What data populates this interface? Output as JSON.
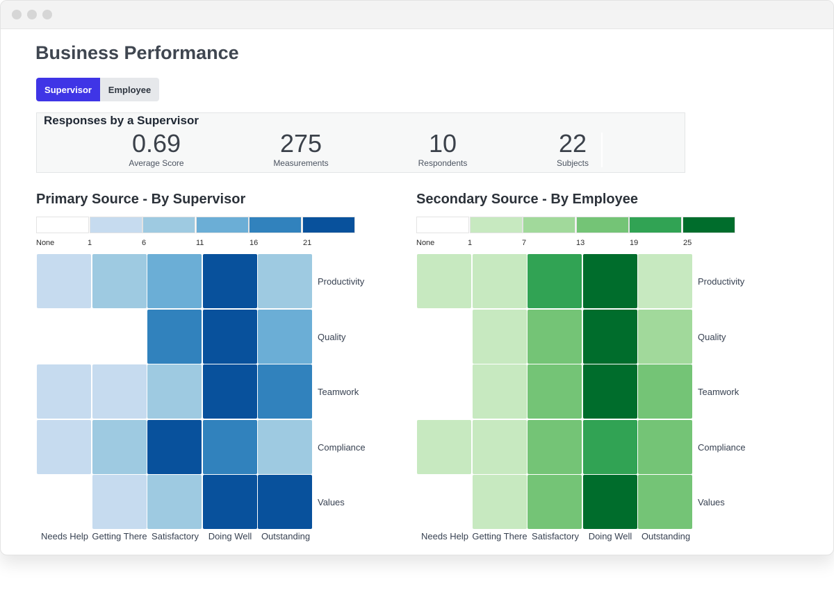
{
  "page": {
    "title": "Business Performance"
  },
  "tabs": [
    {
      "label": "Supervisor",
      "active": true
    },
    {
      "label": "Employee",
      "active": false
    }
  ],
  "stats": {
    "title": "Responses by a Supervisor",
    "items": [
      {
        "value": "0.69",
        "label": "Average Score"
      },
      {
        "value": "275",
        "label": "Measurements"
      },
      {
        "value": "10",
        "label": "Respondents"
      },
      {
        "value": "22",
        "label": "Subjects"
      }
    ]
  },
  "chart_data": [
    {
      "type": "heatmap",
      "title": "Primary Source - By Supervisor",
      "columns": [
        "Needs Help",
        "Getting There",
        "Satisfactory",
        "Doing Well",
        "Outstanding"
      ],
      "rows": [
        "Productivity",
        "Quality",
        "Teamwork",
        "Compliance",
        "Values"
      ],
      "legend": {
        "ticks": [
          "None",
          "1",
          "6",
          "11",
          "16",
          "21"
        ],
        "colors": [
          "#ffffff",
          "#c6dbef",
          "#9ecae1",
          "#6baed6",
          "#3182bd",
          "#08519c"
        ]
      },
      "bins": [
        [
          1,
          2,
          3,
          5,
          2
        ],
        [
          0,
          0,
          4,
          5,
          3
        ],
        [
          1,
          1,
          2,
          5,
          4
        ],
        [
          1,
          2,
          5,
          4,
          2
        ],
        [
          0,
          1,
          2,
          5,
          5
        ]
      ]
    },
    {
      "type": "heatmap",
      "title": "Secondary Source - By Employee",
      "columns": [
        "Needs Help",
        "Getting There",
        "Satisfactory",
        "Doing Well",
        "Outstanding"
      ],
      "rows": [
        "Productivity",
        "Quality",
        "Teamwork",
        "Compliance",
        "Values"
      ],
      "legend": {
        "ticks": [
          "None",
          "1",
          "7",
          "13",
          "19",
          "25"
        ],
        "colors": [
          "#ffffff",
          "#c7e9c0",
          "#a1d99b",
          "#74c476",
          "#31a354",
          "#006d2c"
        ]
      },
      "bins": [
        [
          1,
          1,
          4,
          5,
          1
        ],
        [
          0,
          1,
          3,
          5,
          2
        ],
        [
          0,
          1,
          3,
          5,
          3
        ],
        [
          1,
          1,
          3,
          4,
          3
        ],
        [
          0,
          1,
          3,
          5,
          3
        ]
      ]
    }
  ]
}
